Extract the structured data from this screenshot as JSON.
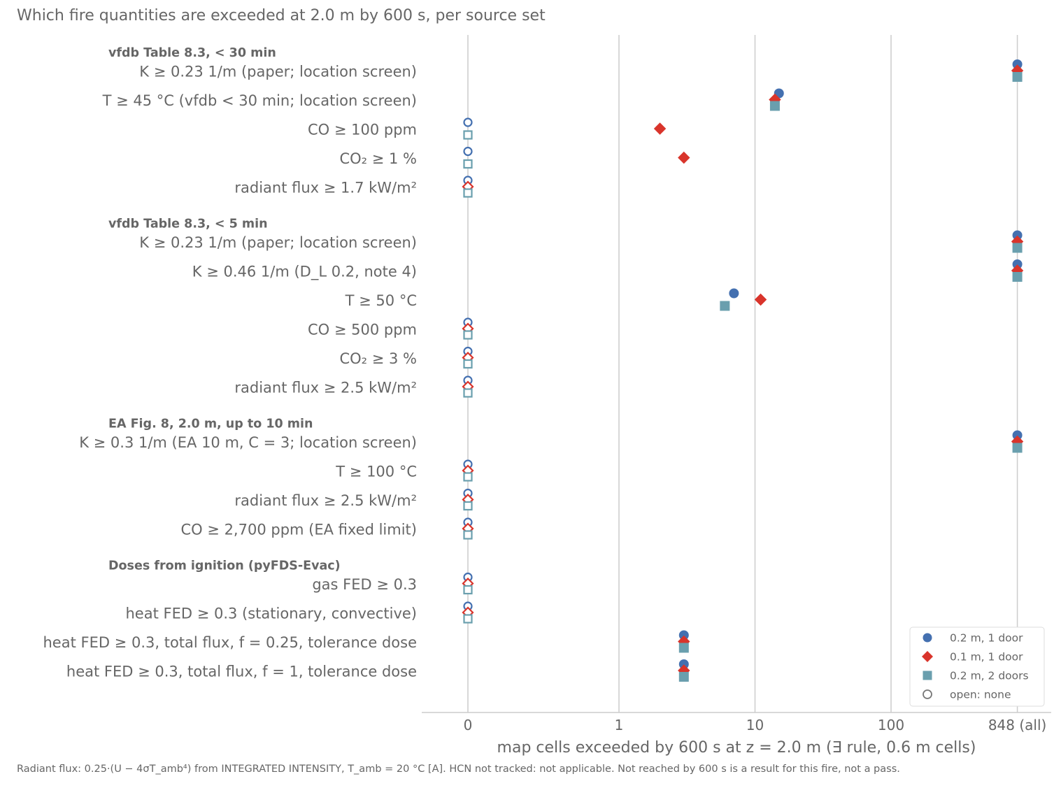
{
  "title": "Which fire quantities are exceeded at 2.0 m by 600 s, per source set",
  "footnote": "Radiant flux: 0.25·(U − 4σT_amb⁴) from INTEGRATED INTENSITY, T_amb = 20 °C [A]. HCN not tracked: not applicable. Not reached by 600 s is a result for this fire, not a pass.",
  "chart_data": {
    "type": "scatter",
    "xlabel": "map cells exceeded by 600 s at z = 2.0 m (∃ rule, 0.6 m cells)",
    "x_scale": "symlog",
    "x_ticks": [
      {
        "value": 0,
        "label": "0"
      },
      {
        "value": 1,
        "label": "1"
      },
      {
        "value": 10,
        "label": "10"
      },
      {
        "value": 100,
        "label": "100"
      },
      {
        "value": 848,
        "label": "848 (all)"
      }
    ],
    "grid": "vertical",
    "legend_position": "lower-right",
    "series": [
      {
        "name": "0.2 m, 1 door",
        "marker": "circle",
        "color": "#4470b0"
      },
      {
        "name": "0.1 m, 1 door",
        "marker": "diamond",
        "color": "#d9342b"
      },
      {
        "name": "0.2 m, 2 doors",
        "marker": "square",
        "color": "#6a9fae"
      },
      {
        "name": "open: none",
        "marker": "open-circle",
        "color": "#777777"
      }
    ],
    "groups": [
      {
        "label": "vfdb Table 8.3, < 30 min",
        "rows": [
          {
            "label": "K ≥ 0.23 1/m (paper; location screen)",
            "values": [
              848,
              848,
              848
            ]
          },
          {
            "label": "T ≥ 45 °C (vfdb < 30 min; location screen)",
            "values": [
              15,
              14,
              14
            ]
          },
          {
            "label": "CO ≥ 100 ppm",
            "values": [
              0,
              2,
              0
            ]
          },
          {
            "label": "CO₂ ≥ 1 %",
            "values": [
              0,
              3,
              0
            ]
          },
          {
            "label": "radiant flux ≥ 1.7 kW/m²",
            "values": [
              0,
              0,
              0
            ]
          }
        ]
      },
      {
        "label": "vfdb Table 8.3, < 5 min",
        "rows": [
          {
            "label": "K ≥ 0.23 1/m (paper; location screen)",
            "values": [
              848,
              848,
              848
            ]
          },
          {
            "label": "K ≥ 0.46 1/m (D_L 0.2, note 4)",
            "values": [
              848,
              848,
              848
            ]
          },
          {
            "label": "T ≥ 50 °C",
            "values": [
              7,
              11,
              6
            ]
          },
          {
            "label": "CO ≥ 500 ppm",
            "values": [
              0,
              0,
              0
            ]
          },
          {
            "label": "CO₂ ≥ 3 %",
            "values": [
              0,
              0,
              0
            ]
          },
          {
            "label": "radiant flux ≥ 2.5 kW/m²",
            "values": [
              0,
              0,
              0
            ]
          }
        ]
      },
      {
        "label": "EA Fig. 8, 2.0 m, up to 10 min",
        "rows": [
          {
            "label": "K ≥ 0.3 1/m (EA 10 m, C = 3; location screen)",
            "values": [
              848,
              848,
              848
            ]
          },
          {
            "label": "T ≥ 100 °C",
            "values": [
              0,
              0,
              0
            ]
          },
          {
            "label": "radiant flux ≥ 2.5 kW/m²",
            "values": [
              0,
              0,
              0
            ]
          },
          {
            "label": "CO ≥ 2,700 ppm (EA fixed limit)",
            "values": [
              0,
              0,
              0
            ]
          }
        ]
      },
      {
        "label": "Doses from ignition (pyFDS-Evac)",
        "rows": [
          {
            "label": "gas FED ≥ 0.3",
            "values": [
              0,
              0,
              0
            ]
          },
          {
            "label": "heat FED ≥ 0.3 (stationary, convective)",
            "values": [
              0,
              0,
              0
            ]
          },
          {
            "label": "heat FED ≥ 0.3, total flux, f = 0.25, tolerance dose",
            "values": [
              3,
              3,
              3
            ]
          },
          {
            "label": "heat FED ≥ 0.3, total flux, f = 1, tolerance dose",
            "values": [
              3,
              3,
              3
            ]
          }
        ]
      }
    ]
  }
}
